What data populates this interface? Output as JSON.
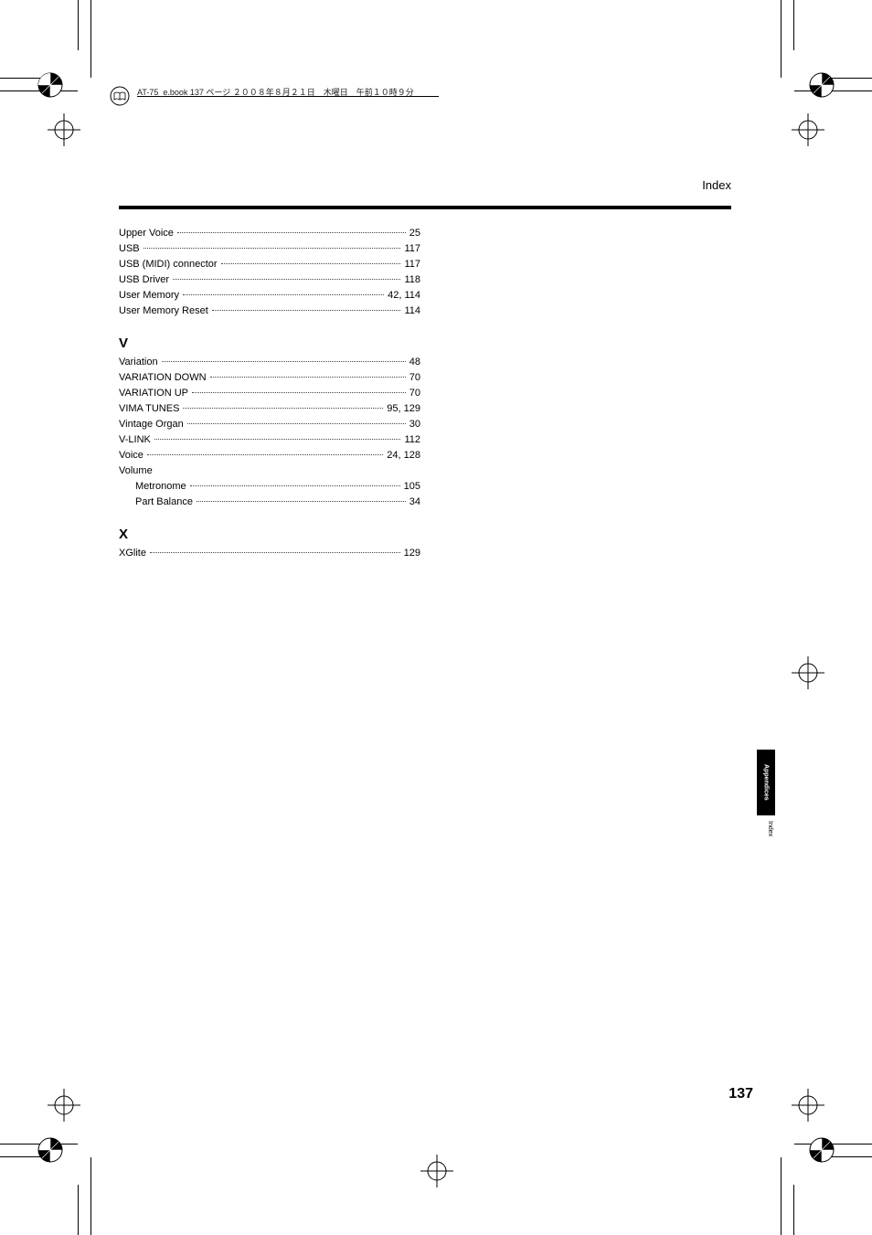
{
  "meta_header": "AT-75_e.book  137 ページ  ２００８年８月２１日　木曜日　午前１０時９分",
  "page_title": "Index",
  "page_number": "137",
  "side_tab": "Appendices",
  "side_tab_sub": "Index",
  "sections": {
    "u": [
      {
        "label": "Upper Voice",
        "pages": "25"
      },
      {
        "label": "USB",
        "pages": "117"
      },
      {
        "label": "USB (MIDI) connector",
        "pages": "117"
      },
      {
        "label": "USB Driver",
        "pages": "118"
      },
      {
        "label": "User Memory",
        "pages": "42, 114"
      },
      {
        "label": "User Memory Reset",
        "pages": "114"
      }
    ],
    "v_letter": "V",
    "v": [
      {
        "label": "Variation",
        "pages": "48"
      },
      {
        "label": "VARIATION DOWN",
        "pages": "70"
      },
      {
        "label": "VARIATION UP",
        "pages": "70"
      },
      {
        "label": "VIMA TUNES",
        "pages": "95, 129"
      },
      {
        "label": "Vintage Organ",
        "pages": "30"
      },
      {
        "label": "V-LINK",
        "pages": "112"
      },
      {
        "label": "Voice",
        "pages": "24, 128"
      },
      {
        "label": "Volume",
        "pages": "",
        "nopages": true
      },
      {
        "label": "Metronome",
        "pages": "105",
        "sub": true
      },
      {
        "label": "Part Balance",
        "pages": "34",
        "sub": true
      }
    ],
    "x_letter": "X",
    "x": [
      {
        "label": "XGlite",
        "pages": "129"
      }
    ]
  }
}
